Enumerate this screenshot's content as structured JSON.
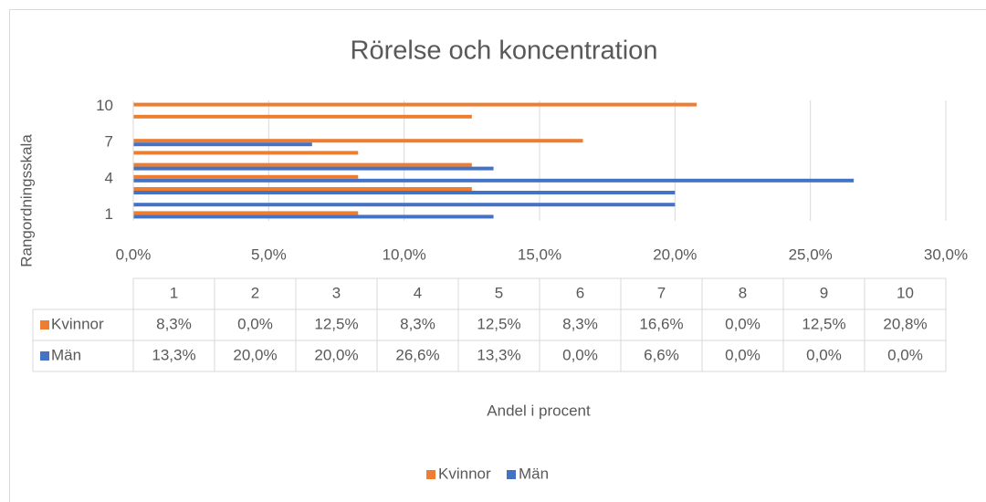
{
  "chart_data": {
    "type": "bar",
    "orientation": "horizontal",
    "title": "Rörelse och koncentration",
    "y_label": "Rangordningsskala",
    "x_label": "Andel i procent",
    "categories": [
      "1",
      "2",
      "3",
      "4",
      "5",
      "6",
      "7",
      "8",
      "9",
      "10"
    ],
    "series": [
      {
        "name": "Kvinnor",
        "color": "#ed7d31",
        "values": [
          8.3,
          0,
          12.5,
          8.3,
          12.5,
          8.3,
          16.6,
          0,
          12.5,
          20.8
        ],
        "value_labels": [
          "8,3%",
          "0,0%",
          "12,5%",
          "8,3%",
          "12,5%",
          "8,3%",
          "16,6%",
          "0,0%",
          "12,5%",
          "20,8%"
        ]
      },
      {
        "name": "Män",
        "color": "#4472c4",
        "values": [
          13.3,
          20,
          20,
          26.6,
          13.3,
          0,
          6.6,
          0,
          0,
          0
        ],
        "value_labels": [
          "13,3%",
          "20,0%",
          "20,0%",
          "26,6%",
          "13,3%",
          "0,0%",
          "6,6%",
          "0,0%",
          "0,0%",
          "0,0%"
        ]
      }
    ],
    "xlim": [
      0,
      30
    ],
    "xticks": [
      {
        "value": 0,
        "label": "0,0%"
      },
      {
        "value": 5,
        "label": "5,0%"
      },
      {
        "value": 10,
        "label": "10,0%"
      },
      {
        "value": 15,
        "label": "15,0%"
      },
      {
        "value": 20,
        "label": "20,0%"
      },
      {
        "value": 25,
        "label": "25,0%"
      },
      {
        "value": 30,
        "label": "30,0%"
      }
    ],
    "grid": true,
    "legend": "bottom",
    "data_table": true
  }
}
